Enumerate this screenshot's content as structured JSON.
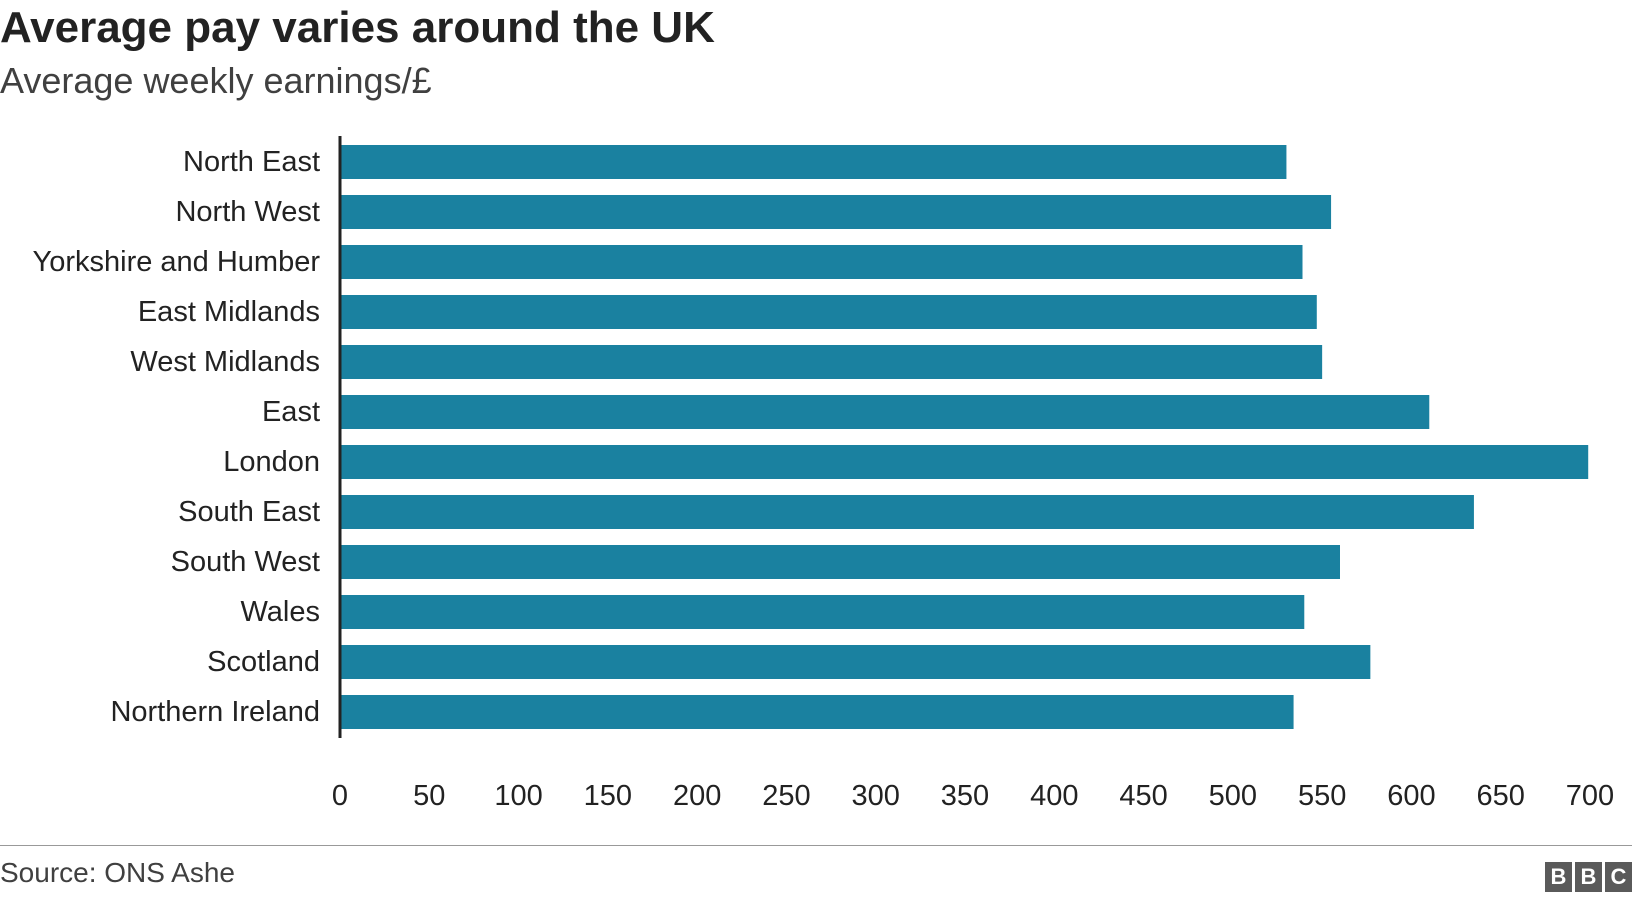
{
  "header": {
    "title": "Average pay varies around the UK",
    "subtitle": "Average weekly earnings/£"
  },
  "footer": {
    "source": "Source: ONS Ashe",
    "logo_letters": [
      "B",
      "B",
      "C"
    ]
  },
  "colors": {
    "bar": "#1a81a0",
    "axis": "#222222",
    "text": "#222222"
  },
  "chart_data": {
    "type": "bar",
    "orientation": "horizontal",
    "categories": [
      "North East",
      "North West",
      "Yorkshire and Humber",
      "East Midlands",
      "West Midlands",
      "East",
      "London",
      "South East",
      "South West",
      "Wales",
      "Scotland",
      "Northern Ireland"
    ],
    "values": [
      530,
      555,
      539,
      547,
      550,
      610,
      699,
      635,
      560,
      540,
      577,
      534
    ],
    "title": "Average pay varies around the UK",
    "subtitle": "Average weekly earnings/£",
    "xlabel": "",
    "ylabel": "",
    "xlim": [
      0,
      700
    ],
    "xticks": [
      0,
      50,
      100,
      150,
      200,
      250,
      300,
      350,
      400,
      450,
      500,
      550,
      600,
      650,
      700
    ],
    "grid": false,
    "legend": "none"
  }
}
